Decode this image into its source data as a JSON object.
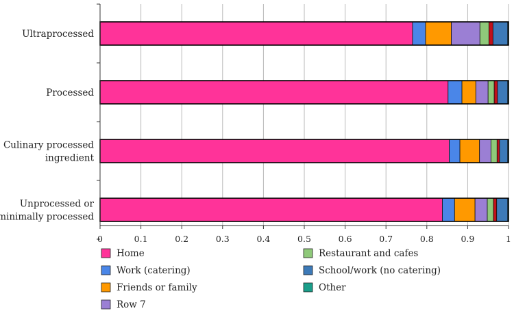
{
  "chart_data": {
    "type": "bar",
    "orientation": "horizontal",
    "stacked": true,
    "categories": [
      [
        "Ultraprocessed"
      ],
      [
        "Processed"
      ],
      [
        "Culinary processed",
        "ingredient"
      ],
      [
        "Unprocessed or",
        "minimally processed"
      ]
    ],
    "series": [
      {
        "name": "Home",
        "color": "#ff3399",
        "values": [
          0.765,
          0.852,
          0.855,
          0.838
        ]
      },
      {
        "name": "Work (catering)",
        "color": "#4a86e8",
        "values": [
          0.032,
          0.034,
          0.026,
          0.03
        ]
      },
      {
        "name": "Friends or family",
        "color": "#ff9900",
        "values": [
          0.063,
          0.034,
          0.048,
          0.05
        ]
      },
      {
        "name": "Row 7",
        "color": "#9b7fd4",
        "values": [
          0.07,
          0.03,
          0.028,
          0.03
        ]
      },
      {
        "name": "Restaurant and cafes",
        "color": "#8fc97a",
        "values": [
          0.022,
          0.015,
          0.015,
          0.015
        ]
      },
      {
        "name": "",
        "color": "#c0101a",
        "values": [
          0.01,
          0.008,
          0.006,
          0.008
        ]
      },
      {
        "name": "School/work (no catering)",
        "color": "#3d7ab8",
        "values": [
          0.036,
          0.025,
          0.02,
          0.027
        ]
      },
      {
        "name": "Other",
        "color": "#1a9e8a",
        "values": [
          0.002,
          0.002,
          0.002,
          0.002
        ]
      }
    ],
    "xlim": [
      0,
      1
    ],
    "xticks": [
      "0",
      "0.1",
      "0.2",
      "0.3",
      "0.4",
      "0.5",
      "0.6",
      "0.7",
      "0.8",
      "0.9",
      "1"
    ],
    "grid": true,
    "legend": {
      "placement": "bottom",
      "columns": [
        [
          "Home",
          "Work (catering)",
          "Friends or family",
          "Row 7"
        ],
        [
          "Restaurant and cafes",
          "School/work (no catering)",
          "Other"
        ]
      ]
    },
    "title": "",
    "xlabel": "",
    "ylabel": ""
  }
}
